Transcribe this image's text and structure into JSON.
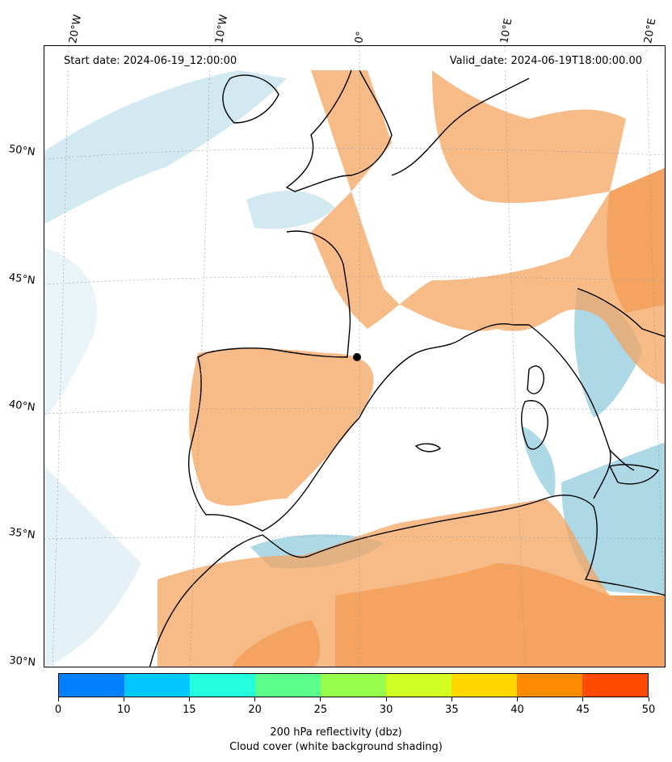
{
  "header": {
    "start_date": "Start date: 2024-06-19_12:00:00",
    "valid_date": "Valid_date: 2024-06-19T18:00:00.00"
  },
  "lon_labels": [
    "20°W",
    "10°W",
    "0°",
    "10°E",
    "20°E"
  ],
  "lat_labels": [
    "50°N",
    "45°N",
    "40°N",
    "35°N",
    "30°N"
  ],
  "colorbar": {
    "colors": [
      "#0080ff",
      "#00c8ff",
      "#23ffdc",
      "#5aff8c",
      "#96ff4b",
      "#d2ff23",
      "#ffd700",
      "#ff8c00",
      "#ff4b00"
    ],
    "ticks": [
      "0",
      "10",
      "15",
      "20",
      "25",
      "30",
      "35",
      "40",
      "45",
      "50"
    ],
    "label_line1": "200 hPa reflectivity (dbz)",
    "label_line2": "Cloud cover (white background shading)"
  },
  "legend_colors": {
    "high_cloud": "#f4a460",
    "low_cloud": "#add8e6",
    "clear": "#ffffff",
    "coast": "#000000"
  }
}
